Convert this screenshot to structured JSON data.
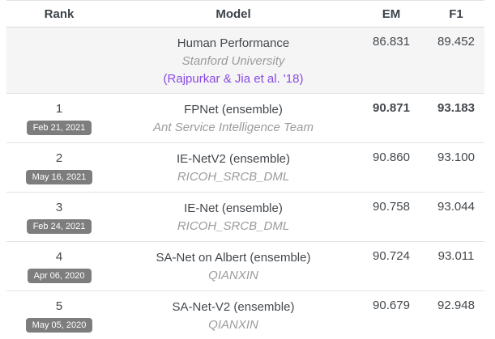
{
  "colors": {
    "header_text": "#3d434a",
    "body_text": "#43484d",
    "muted_text": "#9b9b9b",
    "link_purple": "#8a4ae2",
    "badge_bg": "#7d7d7d",
    "badge_text": "#ffffff",
    "row_border": "#e3e3e3",
    "header_border": "#d8d8d8",
    "human_row_bg": "#f5f5f5",
    "page_bg": "#ffffff"
  },
  "table": {
    "headers": {
      "rank": "Rank",
      "model": "Model",
      "em": "EM",
      "f1": "F1"
    },
    "human_row": {
      "model": "Human Performance",
      "institution": "Stanford University",
      "link": "(Rajpurkar & Jia et al. '18)",
      "em": "86.831",
      "f1": "89.452"
    },
    "rows": [
      {
        "rank": "1",
        "date": "Feb 21, 2021",
        "model": "FPNet (ensemble)",
        "institution": "Ant Service Intelligence Team",
        "em": "90.871",
        "f1": "93.183",
        "highlight": true
      },
      {
        "rank": "2",
        "date": "May 16, 2021",
        "model": "IE-NetV2 (ensemble)",
        "institution": "RICOH_SRCB_DML",
        "em": "90.860",
        "f1": "93.100",
        "highlight": false
      },
      {
        "rank": "3",
        "date": "Feb 24, 2021",
        "model": "IE-Net (ensemble)",
        "institution": "RICOH_SRCB_DML",
        "em": "90.758",
        "f1": "93.044",
        "highlight": false
      },
      {
        "rank": "4",
        "date": "Apr 06, 2020",
        "model": "SA-Net on Albert (ensemble)",
        "institution": "QIANXIN",
        "em": "90.724",
        "f1": "93.011",
        "highlight": false
      },
      {
        "rank": "5",
        "date": "May 05, 2020",
        "model": "SA-Net-V2 (ensemble)",
        "institution": "QIANXIN",
        "em": "90.679",
        "f1": "92.948",
        "highlight": false
      }
    ]
  }
}
